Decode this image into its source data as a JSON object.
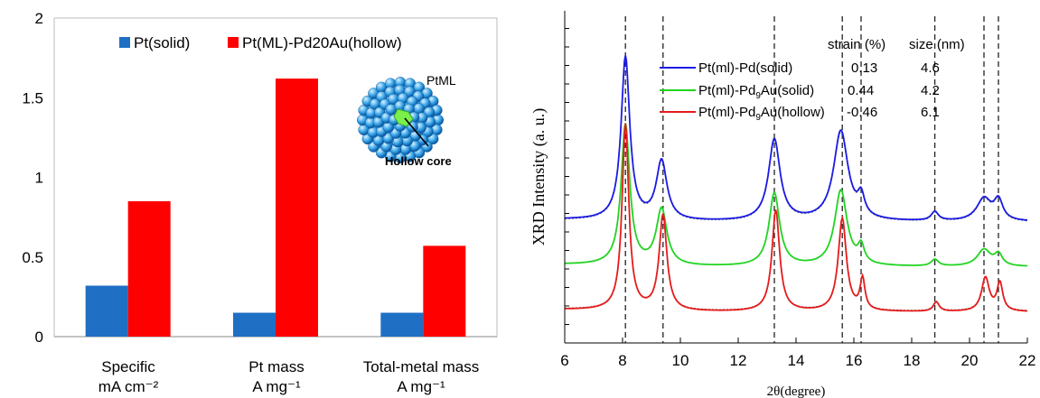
{
  "chart_data": [
    {
      "type": "bar",
      "categories": [
        "Specific",
        "Pt mass",
        "Total-metal mass"
      ],
      "category_units": [
        "mA cm⁻²",
        "A mg⁻¹",
        "A mg⁻¹"
      ],
      "series": [
        {
          "name": "Pt(solid)",
          "color": "#1f6fc5",
          "values": [
            0.32,
            0.15,
            0.15
          ]
        },
        {
          "name": "Pt(ML)-Pd20Au(hollow)",
          "color": "#ff0000",
          "values": [
            0.85,
            1.62,
            0.57
          ]
        }
      ],
      "ylim": [
        0,
        2
      ],
      "yticks": [
        0,
        0.5,
        1,
        1.5,
        2
      ],
      "ytick_labels": [
        "0",
        "0.5",
        "1",
        "1.5",
        "2"
      ],
      "legend_position": "top",
      "grid": false,
      "inset": {
        "label": "PtML",
        "callout": "Hollow core"
      }
    },
    {
      "type": "line",
      "ylabel": "XRD Intensity (a. u.)",
      "xlabel_symbol": "2θ",
      "xlabel_unit": "(degree)",
      "xlim": [
        6,
        22
      ],
      "xticks": [
        6,
        8,
        10,
        12,
        14,
        16,
        18,
        20,
        22
      ],
      "xtick_labels": [
        "6",
        "8",
        "10",
        "12",
        "14",
        "16",
        "18",
        "20",
        "22"
      ],
      "y_ticks_labeled": false,
      "legend_header": {
        "strain": "strain (%)",
        "size": "size (nm)"
      },
      "series": [
        {
          "name_pre": "Pt(ml)-Pd",
          "name_sub": "",
          "name_post": "(solid)",
          "strain": "0.13",
          "size": "4.6",
          "color": "#1b1be6",
          "offset": 2.15,
          "peaks": [
            [
              8.1,
              2.9,
              0.18
            ],
            [
              9.35,
              1.05,
              0.22
            ],
            [
              13.25,
              1.45,
              0.24
            ],
            [
              15.55,
              1.6,
              0.3
            ],
            [
              16.25,
              0.35,
              0.14
            ],
            [
              18.8,
              0.16,
              0.15
            ],
            [
              20.5,
              0.4,
              0.3
            ],
            [
              21.0,
              0.35,
              0.18
            ]
          ]
        },
        {
          "name_pre": "Pt(ml)-Pd",
          "name_sub": "9",
          "name_post": "Au(solid)",
          "strain": "0.44",
          "size": "4.2",
          "color": "#21d421",
          "offset": 1.35,
          "peaks": [
            [
              8.1,
              2.5,
              0.18
            ],
            [
              9.35,
              1.0,
              0.22
            ],
            [
              13.25,
              1.3,
              0.22
            ],
            [
              15.55,
              1.35,
              0.26
            ],
            [
              16.25,
              0.3,
              0.13
            ],
            [
              18.8,
              0.12,
              0.15
            ],
            [
              20.5,
              0.3,
              0.28
            ],
            [
              21.0,
              0.2,
              0.16
            ]
          ]
        },
        {
          "name_pre": "Pt(ml)-Pd",
          "name_sub": "9",
          "name_post": "Au(hollow)",
          "strain": "-0.46",
          "size": "6.1",
          "color": "#e51b1b",
          "offset": 0.55,
          "peaks": [
            [
              8.1,
              3.3,
              0.14
            ],
            [
              9.4,
              1.7,
              0.16
            ],
            [
              13.3,
              1.8,
              0.16
            ],
            [
              15.6,
              1.65,
              0.17
            ],
            [
              16.3,
              0.55,
              0.1
            ],
            [
              18.85,
              0.17,
              0.12
            ],
            [
              20.55,
              0.6,
              0.16
            ],
            [
              21.05,
              0.5,
              0.12
            ]
          ]
        }
      ],
      "reference_lines_x": [
        8.1,
        9.4,
        13.25,
        15.6,
        16.25,
        18.8,
        20.5,
        21.0
      ],
      "grid": false
    }
  ]
}
